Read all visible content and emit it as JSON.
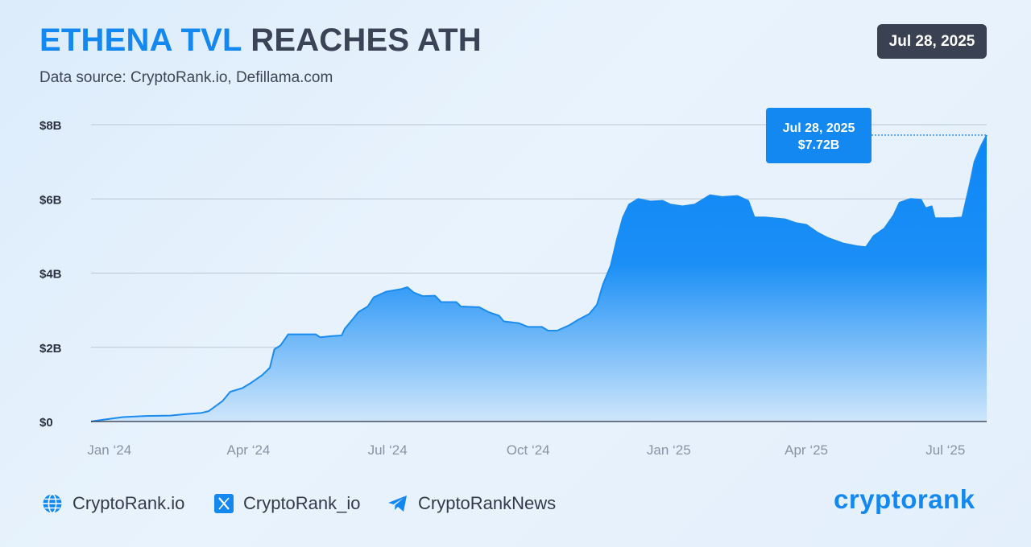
{
  "header": {
    "title_accent": "ETHENA TVL",
    "title_rest": "REACHES ATH",
    "subtitle": "Data source: CryptoRank.io, Defillama.com",
    "date_badge": "Jul 28, 2025"
  },
  "colors": {
    "accent": "#1388f0",
    "dark": "#3a4152",
    "area_top": "#0d86f5",
    "area_bottom": "#cfe6fb",
    "line": "#1a8bef",
    "grid": "#b9c6d4"
  },
  "chart_data": {
    "type": "area",
    "title": "ETHENA TVL REACHES ATH",
    "xlabel": "",
    "ylabel": "",
    "ylim": [
      0,
      8
    ],
    "y_unit": "B USD",
    "y_ticks": [
      {
        "value": 0,
        "label": "$0"
      },
      {
        "value": 2,
        "label": "$2B"
      },
      {
        "value": 4,
        "label": "$4B"
      },
      {
        "value": 6,
        "label": "$6B"
      },
      {
        "value": 8,
        "label": "$8B"
      }
    ],
    "x_range": [
      "2023-12-20",
      "2025-07-28"
    ],
    "x_ticks": [
      {
        "date": "2024-01-01",
        "label": "Jan ‘24"
      },
      {
        "date": "2024-04-01",
        "label": "Apr ‘24"
      },
      {
        "date": "2024-07-01",
        "label": "Jul ‘24"
      },
      {
        "date": "2024-10-01",
        "label": "Oct ‘24"
      },
      {
        "date": "2025-01-01",
        "label": "Jan ‘25"
      },
      {
        "date": "2025-04-01",
        "label": "Apr ‘25"
      },
      {
        "date": "2025-07-01",
        "label": "Jul ‘25"
      }
    ],
    "grid": true,
    "series": [
      {
        "points": [
          [
            "2023-12-20",
            0.0
          ],
          [
            "2023-12-30",
            0.06
          ],
          [
            "2024-01-10",
            0.12
          ],
          [
            "2024-01-25",
            0.15
          ],
          [
            "2024-02-10",
            0.16
          ],
          [
            "2024-02-20",
            0.2
          ],
          [
            "2024-03-01",
            0.23
          ],
          [
            "2024-03-06",
            0.28
          ],
          [
            "2024-03-10",
            0.4
          ],
          [
            "2024-03-15",
            0.55
          ],
          [
            "2024-03-20",
            0.8
          ],
          [
            "2024-03-28",
            0.9
          ],
          [
            "2024-04-03",
            1.05
          ],
          [
            "2024-04-10",
            1.25
          ],
          [
            "2024-04-15",
            1.45
          ],
          [
            "2024-04-18",
            1.95
          ],
          [
            "2024-04-22",
            2.05
          ],
          [
            "2024-04-27",
            2.35
          ],
          [
            "2024-05-03",
            2.35
          ],
          [
            "2024-05-15",
            2.35
          ],
          [
            "2024-05-18",
            2.27
          ],
          [
            "2024-05-25",
            2.3
          ],
          [
            "2024-06-01",
            2.32
          ],
          [
            "2024-06-03",
            2.5
          ],
          [
            "2024-06-08",
            2.75
          ],
          [
            "2024-06-12",
            2.95
          ],
          [
            "2024-06-18",
            3.1
          ],
          [
            "2024-06-22",
            3.35
          ],
          [
            "2024-06-30",
            3.5
          ],
          [
            "2024-07-10",
            3.57
          ],
          [
            "2024-07-14",
            3.62
          ],
          [
            "2024-07-18",
            3.48
          ],
          [
            "2024-07-24",
            3.38
          ],
          [
            "2024-08-01",
            3.39
          ],
          [
            "2024-08-05",
            3.22
          ],
          [
            "2024-08-15",
            3.22
          ],
          [
            "2024-08-18",
            3.1
          ],
          [
            "2024-08-30",
            3.08
          ],
          [
            "2024-09-05",
            2.95
          ],
          [
            "2024-09-12",
            2.85
          ],
          [
            "2024-09-15",
            2.7
          ],
          [
            "2024-09-25",
            2.65
          ],
          [
            "2024-10-01",
            2.55
          ],
          [
            "2024-10-10",
            2.55
          ],
          [
            "2024-10-14",
            2.45
          ],
          [
            "2024-10-20",
            2.45
          ],
          [
            "2024-10-28",
            2.6
          ],
          [
            "2024-11-03",
            2.75
          ],
          [
            "2024-11-10",
            2.9
          ],
          [
            "2024-11-15",
            3.15
          ],
          [
            "2024-11-19",
            3.7
          ],
          [
            "2024-11-24",
            4.2
          ],
          [
            "2024-11-28",
            4.9
          ],
          [
            "2024-12-02",
            5.5
          ],
          [
            "2024-12-06",
            5.85
          ],
          [
            "2024-12-12",
            6.0
          ],
          [
            "2024-12-20",
            5.93
          ],
          [
            "2024-12-28",
            5.95
          ],
          [
            "2025-01-02",
            5.85
          ],
          [
            "2025-01-10",
            5.8
          ],
          [
            "2025-01-18",
            5.85
          ],
          [
            "2025-01-28",
            6.1
          ],
          [
            "2025-02-05",
            6.05
          ],
          [
            "2025-02-15",
            6.08
          ],
          [
            "2025-02-22",
            5.95
          ],
          [
            "2025-02-26",
            5.5
          ],
          [
            "2025-03-05",
            5.5
          ],
          [
            "2025-03-18",
            5.45
          ],
          [
            "2025-03-25",
            5.35
          ],
          [
            "2025-04-01",
            5.3
          ],
          [
            "2025-04-08",
            5.1
          ],
          [
            "2025-04-15",
            4.95
          ],
          [
            "2025-04-25",
            4.8
          ],
          [
            "2025-05-05",
            4.72
          ],
          [
            "2025-05-10",
            4.7
          ],
          [
            "2025-05-15",
            5.0
          ],
          [
            "2025-05-22",
            5.2
          ],
          [
            "2025-05-28",
            5.55
          ],
          [
            "2025-06-01",
            5.9
          ],
          [
            "2025-06-08",
            6.0
          ],
          [
            "2025-06-15",
            5.98
          ],
          [
            "2025-06-18",
            5.75
          ],
          [
            "2025-06-22",
            5.8
          ],
          [
            "2025-06-24",
            5.48
          ],
          [
            "2025-07-05",
            5.48
          ],
          [
            "2025-07-12",
            5.5
          ],
          [
            "2025-07-17",
            6.4
          ],
          [
            "2025-07-20",
            7.0
          ],
          [
            "2025-07-24",
            7.4
          ],
          [
            "2025-07-28",
            7.72
          ]
        ]
      }
    ],
    "annotation": {
      "date": "2025-07-28",
      "value": 7.72,
      "label_date": "Jul 28, 2025",
      "label_value": "$7.72B"
    }
  },
  "footer": {
    "items": [
      {
        "icon": "globe-icon",
        "label": "CryptoRank.io"
      },
      {
        "icon": "x-logo-icon",
        "label": "CryptoRank_io"
      },
      {
        "icon": "telegram-icon",
        "label": "CryptoRankNews"
      }
    ],
    "logo": "cryptorank"
  }
}
